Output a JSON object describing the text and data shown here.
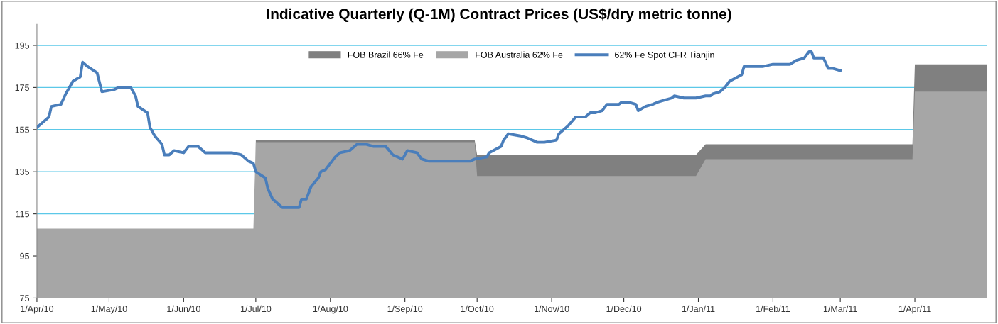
{
  "chart_data": {
    "type": "area",
    "title": "Indicative Quarterly (Q-1M) Contract Prices (US$/dry metric tonne)",
    "legend": "top",
    "grid": "y",
    "x": [
      "2010-04-01",
      "2010-06-30",
      "2010-07-01",
      "2010-09-30",
      "2010-10-01",
      "2010-12-31",
      "2011-01-04",
      "2011-03-31",
      "2011-04-01",
      "2011-05-01"
    ],
    "series": [
      {
        "name": "FOB Brazil 66% Fe",
        "color": "#808080",
        "values": [
          null,
          null,
          150,
          150,
          143,
          143,
          148,
          148,
          186,
          186
        ]
      },
      {
        "name": "FOB Australia 62% Fe",
        "color": "#a6a6a6",
        "values": [
          108,
          108,
          149,
          149,
          133,
          133,
          141,
          141,
          173,
          173
        ]
      },
      {
        "name": "62% Fe Spot CFR Tianjin",
        "color": "#4a7ebb",
        "type": "line",
        "x": [
          "2010-04-01",
          "2010-04-06",
          "2010-04-07",
          "2010-04-11",
          "2010-04-13",
          "2010-04-16",
          "2010-04-19",
          "2010-04-20",
          "2010-04-22",
          "2010-04-26",
          "2010-04-28",
          "2010-05-03",
          "2010-05-05",
          "2010-05-10",
          "2010-05-12",
          "2010-05-13",
          "2010-05-17",
          "2010-05-18",
          "2010-05-20",
          "2010-05-23",
          "2010-05-24",
          "2010-05-26",
          "2010-05-28",
          "2010-06-01",
          "2010-06-03",
          "2010-06-07",
          "2010-06-10",
          "2010-06-16",
          "2010-06-18",
          "2010-06-21",
          "2010-06-25",
          "2010-06-28",
          "2010-06-30",
          "2010-07-01",
          "2010-07-05",
          "2010-07-06",
          "2010-07-08",
          "2010-07-12",
          "2010-07-19",
          "2010-07-20",
          "2010-07-22",
          "2010-07-24",
          "2010-07-27",
          "2010-07-28",
          "2010-07-30",
          "2010-08-03",
          "2010-08-05",
          "2010-08-09",
          "2010-08-12",
          "2010-08-16",
          "2010-08-19",
          "2010-08-24",
          "2010-08-27",
          "2010-08-31",
          "2010-09-02",
          "2010-09-06",
          "2010-09-08",
          "2010-09-11",
          "2010-09-16",
          "2010-09-22",
          "2010-09-28",
          "2010-09-30",
          "2010-10-05",
          "2010-10-06",
          "2010-10-11",
          "2010-10-12",
          "2010-10-14",
          "2010-10-19",
          "2010-10-22",
          "2010-10-26",
          "2010-10-29",
          "2010-11-03",
          "2010-11-04",
          "2010-11-08",
          "2010-11-11",
          "2010-11-12",
          "2010-11-15",
          "2010-11-17",
          "2010-11-19",
          "2010-11-22",
          "2010-11-24",
          "2010-11-29",
          "2010-11-30",
          "2010-12-03",
          "2010-12-06",
          "2010-12-07",
          "2010-12-10",
          "2010-12-13",
          "2010-12-15",
          "2010-12-18",
          "2010-12-21",
          "2010-12-22",
          "2010-12-26",
          "2010-12-31",
          "2011-01-04",
          "2011-01-06",
          "2011-01-07",
          "2011-01-10",
          "2011-01-12",
          "2011-01-14",
          "2011-01-19",
          "2011-01-20",
          "2011-01-24",
          "2011-01-26",
          "2011-01-28",
          "2011-02-01",
          "2011-02-08",
          "2011-02-11",
          "2011-02-14",
          "2011-02-16",
          "2011-02-17",
          "2011-02-18",
          "2011-02-22",
          "2011-02-24",
          "2011-02-26",
          "2011-03-01"
        ],
        "values": [
          156,
          161,
          166,
          167,
          172,
          178,
          180,
          187,
          185,
          182,
          173,
          174,
          175,
          175,
          171,
          166,
          163,
          156,
          152,
          148,
          143,
          143,
          145,
          144,
          147,
          147,
          144,
          144,
          144,
          144,
          143,
          140,
          139,
          135,
          132,
          127,
          122,
          118,
          118,
          122,
          122,
          128,
          132,
          135,
          136,
          142,
          144,
          145,
          148,
          148,
          147,
          147,
          143,
          141,
          145,
          144,
          141,
          140,
          140,
          140,
          140,
          141,
          142,
          144,
          147,
          150,
          153,
          152,
          151,
          149,
          149,
          150,
          153,
          157,
          161,
          161,
          161,
          163,
          163,
          164,
          167,
          167,
          168,
          168,
          167,
          164,
          166,
          167,
          168,
          169,
          170,
          171,
          170,
          170,
          171,
          171,
          172,
          173,
          175,
          178,
          181,
          185,
          185,
          185,
          185,
          186,
          186,
          188,
          189,
          192,
          192,
          189,
          189,
          184,
          184,
          183
        ]
      }
    ],
    "xlim": [
      "2010-04-01",
      "2011-05-01"
    ],
    "xticks": [
      {
        "value": "2010-04-01",
        "label": "1/Apr/10"
      },
      {
        "value": "2010-05-01",
        "label": "1/May/10"
      },
      {
        "value": "2010-06-01",
        "label": "1/Jun/10"
      },
      {
        "value": "2010-07-01",
        "label": "1/Jul/10"
      },
      {
        "value": "2010-08-01",
        "label": "1/Aug/10"
      },
      {
        "value": "2010-09-01",
        "label": "1/Sep/10"
      },
      {
        "value": "2010-10-01",
        "label": "1/Oct/10"
      },
      {
        "value": "2010-11-01",
        "label": "1/Nov/10"
      },
      {
        "value": "2010-12-01",
        "label": "1/Dec/10"
      },
      {
        "value": "2011-01-01",
        "label": "1/Jan/11"
      },
      {
        "value": "2011-02-01",
        "label": "1/Feb/11"
      },
      {
        "value": "2011-03-01",
        "label": "1/Mar/11"
      },
      {
        "value": "2011-04-01",
        "label": "1/Apr/11"
      }
    ],
    "ylim": [
      75,
      205
    ],
    "yticks": [
      75,
      95,
      115,
      135,
      155,
      175,
      195
    ]
  }
}
